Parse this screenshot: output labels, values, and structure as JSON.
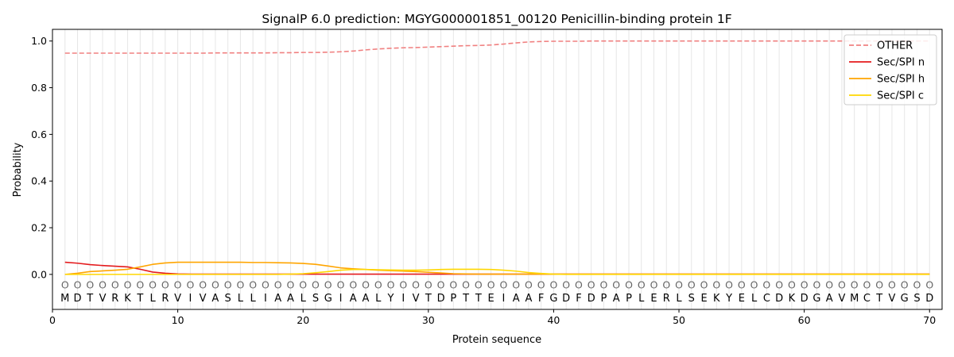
{
  "chart_data": {
    "type": "line",
    "title": "SignalP 6.0 prediction: MGYG000001851_00120 Penicillin-binding protein 1F",
    "xlabel": "Protein sequence",
    "ylabel": "Probability",
    "xlim": [
      0,
      71
    ],
    "ylim": [
      -0.15,
      1.05
    ],
    "x_ticks": [
      0,
      10,
      20,
      30,
      40,
      50,
      60,
      70
    ],
    "y_ticks": [
      0.0,
      0.2,
      0.4,
      0.6,
      0.8,
      1.0
    ],
    "grid": "vertical lines at each residue",
    "legend_position": "top-right",
    "sequence": [
      "M",
      "D",
      "T",
      "V",
      "R",
      "K",
      "T",
      "L",
      "R",
      "V",
      "I",
      "V",
      "A",
      "S",
      "L",
      "L",
      "I",
      "A",
      "A",
      "L",
      "S",
      "G",
      "I",
      "A",
      "A",
      "L",
      "Y",
      "I",
      "V",
      "T",
      "D",
      "P",
      "T",
      "T",
      "E",
      "I",
      "A",
      "A",
      "F",
      "G",
      "D",
      "F",
      "D",
      "P",
      "A",
      "P",
      "L",
      "E",
      "R",
      "L",
      "S",
      "E",
      "K",
      "Y",
      "E",
      "L",
      "C",
      "D",
      "K",
      "D",
      "G",
      "A",
      "V",
      "M",
      "C",
      "T",
      "V",
      "G",
      "S",
      "D"
    ],
    "region_marker": "O",
    "x": [
      1,
      2,
      3,
      4,
      5,
      6,
      7,
      8,
      9,
      10,
      11,
      12,
      13,
      14,
      15,
      16,
      17,
      18,
      19,
      20,
      21,
      22,
      23,
      24,
      25,
      26,
      27,
      28,
      29,
      30,
      31,
      32,
      33,
      34,
      35,
      36,
      37,
      38,
      39,
      40,
      41,
      42,
      43,
      44,
      45,
      46,
      47,
      48,
      49,
      50,
      51,
      52,
      53,
      54,
      55,
      56,
      57,
      58,
      59,
      60,
      61,
      62,
      63,
      64,
      65,
      66,
      67,
      68,
      69,
      70
    ],
    "series": [
      {
        "name": "OTHER",
        "color": "#f08080",
        "dash": true,
        "values": [
          0.948,
          0.948,
          0.948,
          0.948,
          0.948,
          0.948,
          0.948,
          0.948,
          0.948,
          0.948,
          0.948,
          0.948,
          0.949,
          0.949,
          0.949,
          0.949,
          0.949,
          0.95,
          0.95,
          0.951,
          0.951,
          0.952,
          0.954,
          0.957,
          0.962,
          0.966,
          0.969,
          0.971,
          0.972,
          0.974,
          0.976,
          0.978,
          0.98,
          0.981,
          0.983,
          0.987,
          0.992,
          0.996,
          0.998,
          0.999,
          0.999,
          0.999,
          1.0,
          1.0,
          1.0,
          1.0,
          1.0,
          1.0,
          1.0,
          1.0,
          1.0,
          1.0,
          1.0,
          1.0,
          1.0,
          1.0,
          1.0,
          1.0,
          1.0,
          1.0,
          1.0,
          1.0,
          1.0,
          1.0,
          1.0,
          1.0,
          1.0,
          1.0,
          1.0,
          1.0
        ]
      },
      {
        "name": "Sec/SPI n",
        "color": "#e41a1c",
        "dash": false,
        "values": [
          0.052,
          0.048,
          0.042,
          0.038,
          0.035,
          0.032,
          0.022,
          0.01,
          0.005,
          0.002,
          0.001,
          0.001,
          0.001,
          0.001,
          0.001,
          0.001,
          0.001,
          0.001,
          0.001,
          0.001,
          0.001,
          0.001,
          0.001,
          0.001,
          0.001,
          0.001,
          0.001,
          0.001,
          0.001,
          0.001,
          0.001,
          0.001,
          0.001,
          0.001,
          0.001,
          0.001,
          0.001,
          0.001,
          0.001,
          0.001,
          0.001,
          0.001,
          0.001,
          0.001,
          0.001,
          0.001,
          0.001,
          0.001,
          0.001,
          0.001,
          0.001,
          0.001,
          0.001,
          0.001,
          0.001,
          0.001,
          0.001,
          0.001,
          0.001,
          0.001,
          0.001,
          0.001,
          0.001,
          0.001,
          0.001,
          0.001,
          0.001,
          0.001,
          0.001,
          0.001
        ]
      },
      {
        "name": "Sec/SPI h",
        "color": "#ffa500",
        "dash": false,
        "values": [
          0.0,
          0.005,
          0.012,
          0.015,
          0.018,
          0.022,
          0.032,
          0.043,
          0.049,
          0.052,
          0.052,
          0.052,
          0.052,
          0.052,
          0.052,
          0.051,
          0.051,
          0.05,
          0.049,
          0.047,
          0.043,
          0.036,
          0.028,
          0.024,
          0.021,
          0.018,
          0.016,
          0.014,
          0.012,
          0.009,
          0.006,
          0.003,
          0.002,
          0.001,
          0.001,
          0.001,
          0.001,
          0.001,
          0.001,
          0.001,
          0.001,
          0.001,
          0.001,
          0.001,
          0.001,
          0.001,
          0.001,
          0.001,
          0.001,
          0.001,
          0.001,
          0.001,
          0.001,
          0.001,
          0.001,
          0.001,
          0.001,
          0.001,
          0.001,
          0.001,
          0.001,
          0.001,
          0.001,
          0.001,
          0.001,
          0.001,
          0.001,
          0.001,
          0.001,
          0.001
        ]
      },
      {
        "name": "Sec/SPI c",
        "color": "#ffd700",
        "dash": false,
        "values": [
          0.0,
          0.0,
          0.0,
          0.0,
          0.0,
          0.0,
          0.0,
          0.0,
          0.0,
          0.0,
          0.0,
          0.0,
          0.0,
          0.0,
          0.0,
          0.0,
          0.0,
          0.0,
          0.001,
          0.003,
          0.007,
          0.012,
          0.018,
          0.021,
          0.021,
          0.02,
          0.019,
          0.018,
          0.018,
          0.019,
          0.021,
          0.022,
          0.022,
          0.022,
          0.021,
          0.018,
          0.014,
          0.008,
          0.004,
          0.001,
          0.0,
          0.0,
          0.0,
          0.0,
          0.0,
          0.0,
          0.0,
          0.0,
          0.0,
          0.0,
          0.0,
          0.0,
          0.0,
          0.0,
          0.0,
          0.0,
          0.0,
          0.0,
          0.0,
          0.0,
          0.0,
          0.0,
          0.0,
          0.0,
          0.0,
          0.0,
          0.0,
          0.0,
          0.0,
          0.0
        ]
      }
    ]
  }
}
